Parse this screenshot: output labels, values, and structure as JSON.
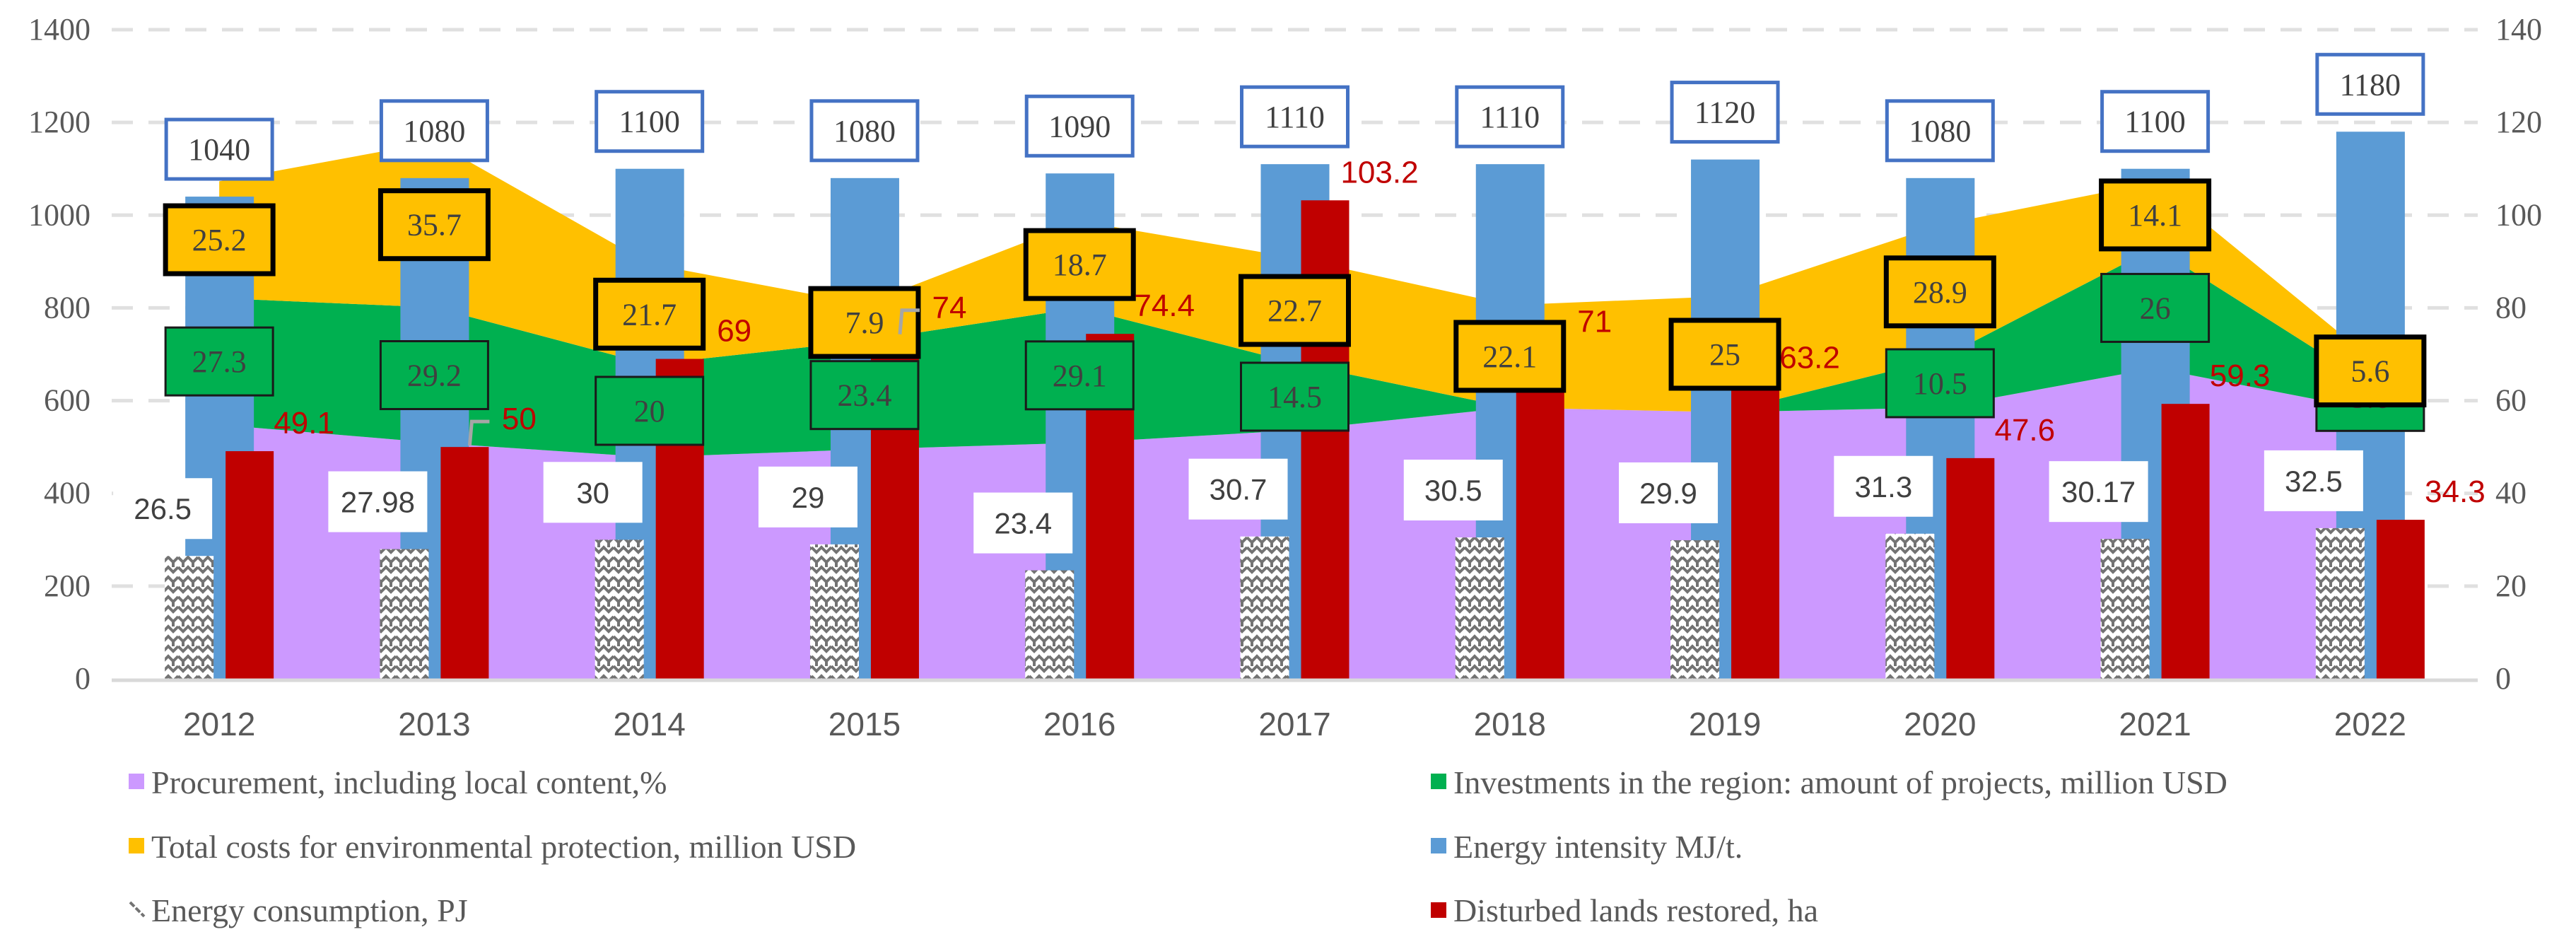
{
  "chart_data": {
    "type": "bar",
    "title": "",
    "categories": [
      "2012",
      "2013",
      "2014",
      "2015",
      "2016",
      "2017",
      "2018",
      "2019",
      "2020",
      "2021",
      "2022"
    ],
    "left_axis": {
      "ylim": [
        0,
        1400
      ],
      "ticks": [
        0,
        200,
        400,
        600,
        800,
        1000,
        1200,
        1400
      ]
    },
    "right_axis": {
      "ylim": [
        0,
        140
      ],
      "ticks": [
        0,
        20,
        40,
        60,
        80,
        100,
        120,
        140
      ]
    },
    "grid": true,
    "legend_position": "bottom",
    "series": [
      {
        "name": "Procurement, including local content,%",
        "type": "stacked-area",
        "axis": "right",
        "color": "#cc99ff",
        "values": [
          54.8,
          50.9,
          47.8,
          49.5,
          50.9,
          53.6,
          58.5,
          57.5,
          58.5,
          67.0,
          58.0
        ],
        "labels_shown": false
      },
      {
        "name": "Investments in the region: amount of projects, million USD",
        "type": "stacked-area",
        "axis": "right",
        "color": "#00b050",
        "values": [
          27.3,
          29.2,
          20,
          23.4,
          29.1,
          14.5,
          0,
          0,
          10.5,
          26,
          5.6
        ],
        "labels": [
          "27.3",
          "29.2",
          "20",
          "23.4",
          "29.1",
          "14.5",
          "",
          "",
          "10.5",
          "26",
          "5.6"
        ]
      },
      {
        "name": "Total costs for environmental protection, million USD",
        "type": "stacked-area",
        "axis": "right",
        "color": "#ffc000",
        "values": [
          25.2,
          35.7,
          21.7,
          7.9,
          18.7,
          22.7,
          22.1,
          25,
          28.9,
          14.1,
          5.6
        ],
        "labels": [
          "25.2",
          "35.7",
          "21.7",
          "7.9",
          "18.7",
          "22.7",
          "22.1",
          "25",
          "28.9",
          "14.1",
          "5.6"
        ]
      },
      {
        "name": "Energy intensity MJ/t.",
        "type": "bar",
        "axis": "left",
        "color": "#5b9bd5",
        "values": [
          1040,
          1080,
          1100,
          1080,
          1090,
          1110,
          1110,
          1120,
          1080,
          1100,
          1180
        ],
        "labels": [
          "1040",
          "1080",
          "1100",
          "1080",
          "1090",
          "1110",
          "1110",
          "1120",
          "1080",
          "1100",
          "1180"
        ]
      },
      {
        "name": "Energy consumption, PJ",
        "type": "bar",
        "axis": "right",
        "color": "#7f7f7f",
        "values": [
          26.5,
          27.98,
          30,
          29,
          23.4,
          30.7,
          30.5,
          29.9,
          31.3,
          30.17,
          32.5
        ],
        "labels": [
          "26.5",
          "27.98",
          "30",
          "29",
          "23.4",
          "30.7",
          "30.5",
          "29.9",
          "31.3",
          "30.17",
          "32.5"
        ]
      },
      {
        "name": "Disturbed lands restored, ha",
        "type": "bar",
        "axis": "right",
        "color": "#c00000",
        "values": [
          49.1,
          50,
          69,
          74,
          74.4,
          103.2,
          71,
          63.2,
          47.6,
          59.3,
          34.3
        ],
        "labels": [
          "49.1",
          "50",
          "69",
          "74",
          "74.4",
          "103.2",
          "71",
          "63.2",
          "47.6",
          "59.3",
          "34.3"
        ]
      }
    ]
  }
}
